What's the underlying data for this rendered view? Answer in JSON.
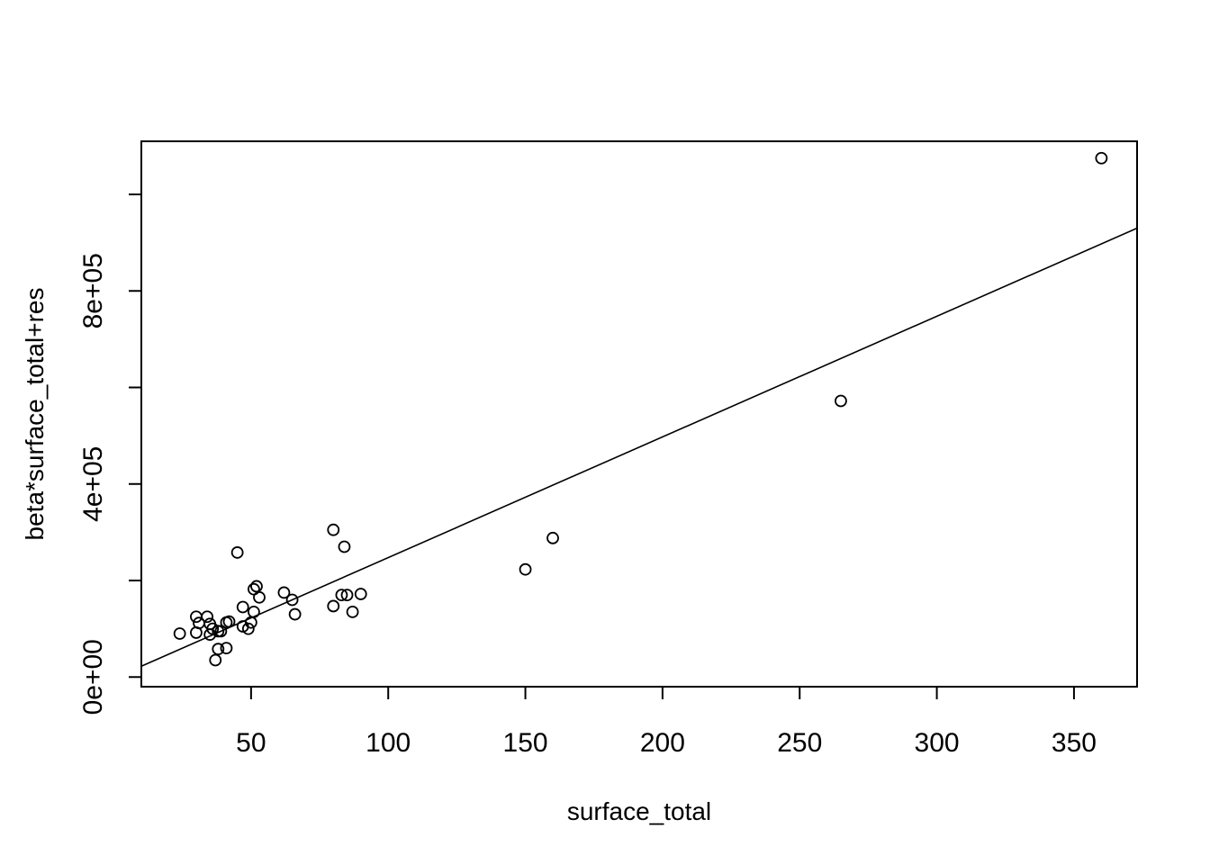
{
  "chart_data": {
    "type": "scatter",
    "title": "",
    "xlabel": "surface_total",
    "ylabel": "beta*surface_total+res",
    "xlim": [
      10,
      373
    ],
    "ylim": [
      -20000,
      1110000
    ],
    "x_ticks": [
      50,
      100,
      150,
      200,
      250,
      300,
      350
    ],
    "x_tick_labels": [
      "50",
      "100",
      "150",
      "200",
      "250",
      "300",
      "350"
    ],
    "y_ticks": [
      0,
      200000,
      400000,
      600000,
      800000,
      1000000
    ],
    "y_tick_labels": [
      "0e+00",
      "",
      "4e+05",
      "",
      "8e+05",
      ""
    ],
    "grid": false,
    "legend": "none",
    "fit_line": {
      "intercept": -2500,
      "slope": 2500
    },
    "points": [
      [
        24,
        90000
      ],
      [
        30,
        125000
      ],
      [
        30,
        92000
      ],
      [
        31,
        112000
      ],
      [
        34,
        125000
      ],
      [
        35,
        110000
      ],
      [
        35,
        88000
      ],
      [
        36,
        100000
      ],
      [
        37,
        35000
      ],
      [
        38,
        95000
      ],
      [
        38,
        58000
      ],
      [
        39,
        95000
      ],
      [
        41,
        113000
      ],
      [
        41,
        60000
      ],
      [
        42,
        115000
      ],
      [
        45,
        258000
      ],
      [
        47,
        145000
      ],
      [
        47,
        105000
      ],
      [
        49,
        100000
      ],
      [
        50,
        113000
      ],
      [
        51,
        135000
      ],
      [
        51,
        182000
      ],
      [
        52,
        188000
      ],
      [
        53,
        165000
      ],
      [
        62,
        175000
      ],
      [
        65,
        160000
      ],
      [
        66,
        130000
      ],
      [
        80,
        305000
      ],
      [
        80,
        147000
      ],
      [
        83,
        170000
      ],
      [
        84,
        270000
      ],
      [
        85,
        170000
      ],
      [
        87,
        135000
      ],
      [
        90,
        172000
      ],
      [
        150,
        223000
      ],
      [
        160,
        288000
      ],
      [
        265,
        572000
      ],
      [
        360,
        1075000
      ]
    ]
  }
}
